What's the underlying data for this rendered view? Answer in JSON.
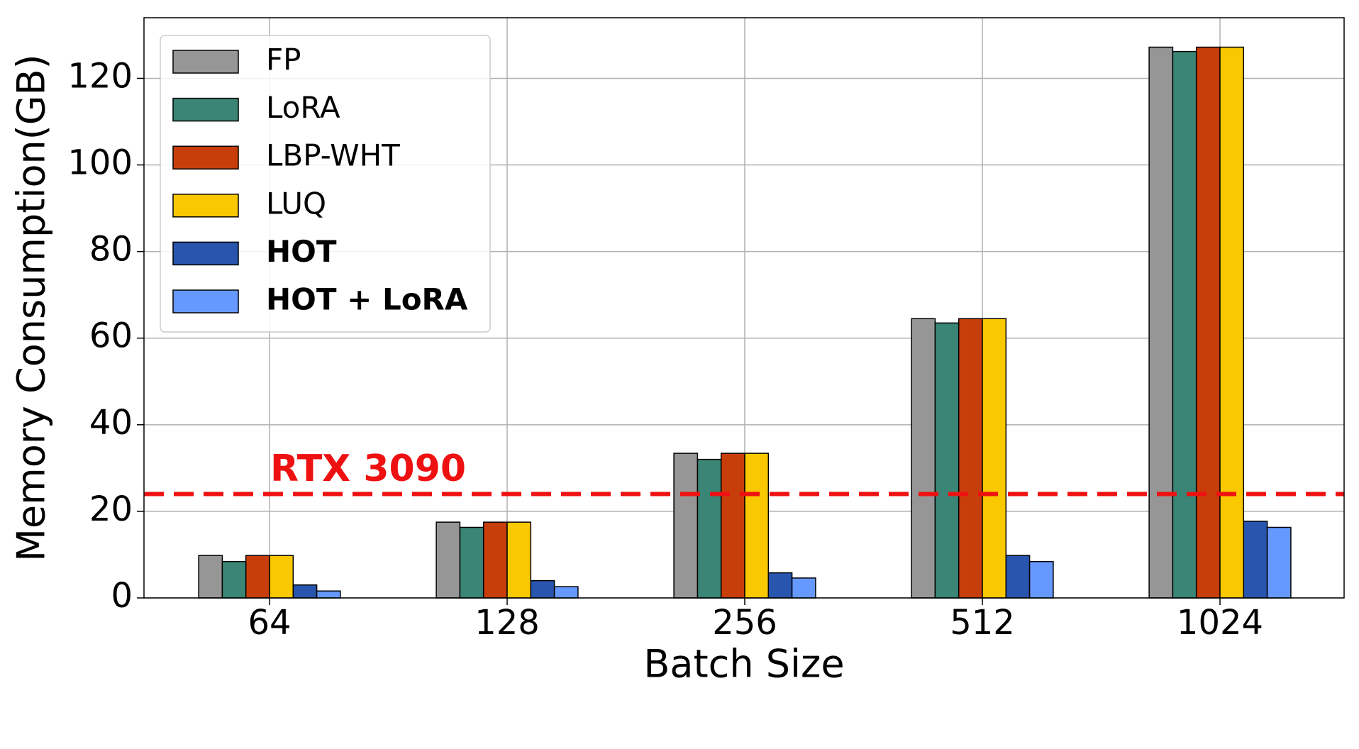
{
  "chart_data": {
    "type": "bar",
    "x_label": "Batch Size",
    "y_label": "Memory Consumption(GB)",
    "categories": [
      "64",
      "128",
      "256",
      "512",
      "1024"
    ],
    "series": [
      {
        "name": "FP",
        "color": "#969696",
        "values": [
          9.8,
          17.5,
          33.4,
          64.5,
          127.2
        ]
      },
      {
        "name": "LoRA",
        "color": "#3a8576",
        "values": [
          8.4,
          16.3,
          32.0,
          63.5,
          126.2
        ]
      },
      {
        "name": "LBP-WHT",
        "color": "#c83e0a",
        "values": [
          9.8,
          17.5,
          33.4,
          64.5,
          127.2
        ]
      },
      {
        "name": "LUQ",
        "color": "#f9c800",
        "values": [
          9.8,
          17.5,
          33.4,
          64.5,
          127.2
        ]
      },
      {
        "name": "HOT",
        "color": "#2855ad",
        "bold": true,
        "values": [
          3.0,
          4.0,
          5.8,
          9.8,
          17.7
        ]
      },
      {
        "name": "HOT + LoRA",
        "color": "#6699ff",
        "bold": true,
        "values": [
          1.6,
          2.6,
          4.6,
          8.4,
          16.3
        ]
      }
    ],
    "reference_line": {
      "value": 24,
      "label": "RTX 3090",
      "color": "#ee1111"
    },
    "ylim": [
      0,
      134
    ],
    "yticks": [
      0,
      20,
      40,
      60,
      80,
      100,
      120
    ],
    "grid": true,
    "legend_position": "upper left"
  }
}
